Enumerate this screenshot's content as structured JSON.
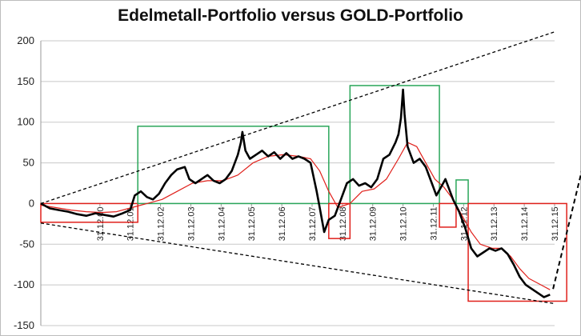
{
  "chart_data": {
    "type": "line",
    "title": "Edelmetall-Portfolio versus GOLD-Portfolio",
    "xlabel": "",
    "ylabel": "",
    "ylim": [
      -150,
      200
    ],
    "yticks": [
      -150,
      -100,
      -50,
      0,
      50,
      100,
      150,
      200
    ],
    "xticks": [
      "31.12.00",
      "31.12.01",
      "31.12.02",
      "31.12.03",
      "31.12.04",
      "31.12.05",
      "31.12.06",
      "31.12.07",
      "31.12.08",
      "31.12.09",
      "31.12.10",
      "31.12.11",
      "31.12.12",
      "31.12.13",
      "31.12.14",
      "31.12.15"
    ],
    "xlim_years": [
      1999.0,
      2015.95
    ],
    "grid": "horizontal",
    "legend": "none",
    "series": [
      {
        "color": "#000000",
        "x": [
          1999.0,
          1999.3,
          1999.6,
          1999.9,
          2000.2,
          2000.5,
          2000.8,
          2001.1,
          2001.4,
          2001.7,
          2001.95,
          2002.1,
          2002.3,
          2002.5,
          2002.7,
          2002.9,
          2003.1,
          2003.3,
          2003.5,
          2003.75,
          2003.9,
          2004.1,
          2004.3,
          2004.5,
          2004.7,
          2004.9,
          2005.1,
          2005.3,
          2005.5,
          2005.6,
          2005.65,
          2005.75,
          2005.9,
          2006.1,
          2006.3,
          2006.5,
          2006.7,
          2006.9,
          2007.1,
          2007.3,
          2007.5,
          2007.7,
          2007.9,
          2008.1,
          2008.2,
          2008.35,
          2008.5,
          2008.7,
          2008.9,
          2009.1,
          2009.3,
          2009.5,
          2009.7,
          2009.9,
          2010.1,
          2010.3,
          2010.5,
          2010.7,
          2010.8,
          2010.88,
          2010.95,
          2011.0,
          2011.1,
          2011.3,
          2011.5,
          2011.7,
          2011.9,
          2012.05,
          2012.2,
          2012.35,
          2012.5,
          2012.6,
          2012.8,
          2013.0,
          2013.2,
          2013.4,
          2013.6,
          2013.8,
          2014.0,
          2014.2,
          2014.4,
          2014.6,
          2014.8,
          2015.0,
          2015.2,
          2015.4,
          2015.6,
          2015.8
        ],
        "y": [
          0,
          -6,
          -8,
          -10,
          -13,
          -15,
          -12,
          -14,
          -16,
          -12,
          -8,
          10,
          15,
          8,
          5,
          12,
          25,
          35,
          42,
          45,
          30,
          25,
          30,
          35,
          28,
          25,
          30,
          40,
          60,
          75,
          88,
          65,
          55,
          60,
          65,
          58,
          63,
          55,
          62,
          55,
          58,
          55,
          50,
          15,
          -5,
          -35,
          -20,
          -15,
          5,
          25,
          30,
          22,
          25,
          20,
          30,
          55,
          60,
          75,
          85,
          105,
          140,
          110,
          70,
          50,
          55,
          45,
          25,
          10,
          20,
          30,
          15,
          5,
          -10,
          -30,
          -55,
          -65,
          -60,
          -55,
          -58,
          -55,
          -62,
          -75,
          -90,
          -100,
          -105,
          -110,
          -115,
          -112
        ]
      },
      {
        "color": "#e0201b",
        "x": [
          1999.0,
          1999.5,
          2000.0,
          2000.5,
          2001.0,
          2001.5,
          2002.0,
          2002.5,
          2003.0,
          2003.5,
          2004.0,
          2004.5,
          2005.0,
          2005.5,
          2006.0,
          2006.5,
          2007.0,
          2007.5,
          2007.9,
          2008.2,
          2008.5,
          2008.8,
          2009.2,
          2009.6,
          2010.0,
          2010.4,
          2010.8,
          2011.1,
          2011.4,
          2011.7,
          2012.0,
          2012.3,
          2012.6,
          2012.9,
          2013.2,
          2013.5,
          2013.9,
          2014.2,
          2014.5,
          2014.8,
          2015.1,
          2015.5,
          2015.8
        ],
        "y": [
          -2,
          -5,
          -8,
          -10,
          -11,
          -10,
          -5,
          0,
          5,
          15,
          25,
          28,
          28,
          35,
          50,
          58,
          60,
          58,
          55,
          40,
          15,
          -5,
          0,
          15,
          18,
          30,
          55,
          75,
          70,
          50,
          30,
          20,
          5,
          -15,
          -35,
          -50,
          -55,
          -55,
          -65,
          -80,
          -92,
          -100,
          -106
        ]
      }
    ],
    "annotations": {
      "trend_lines": [
        {
          "style": "dashed",
          "from": [
            1999.0,
            0
          ],
          "to": [
            2015.95,
            211
          ]
        },
        {
          "style": "dashed",
          "from": [
            1999.0,
            -24
          ],
          "to": [
            2015.95,
            -123
          ]
        },
        {
          "style": "dashed-arrow",
          "from": [
            2015.9,
            -105
          ],
          "to": [
            2017.4,
            125
          ]
        }
      ],
      "boxes": [
        {
          "color": "#e0201b",
          "x": [
            1999.0,
            2002.2
          ],
          "y": [
            -23,
            0
          ]
        },
        {
          "color": "#2aa65a",
          "x": [
            2002.2,
            2008.5
          ],
          "y": [
            0,
            95
          ]
        },
        {
          "color": "#e0201b",
          "x": [
            2008.5,
            2009.2
          ],
          "y": [
            -43,
            0
          ]
        },
        {
          "color": "#2aa65a",
          "x": [
            2009.2,
            2012.15
          ],
          "y": [
            0,
            145
          ]
        },
        {
          "color": "#e0201b",
          "x": [
            2012.15,
            2012.7
          ],
          "y": [
            -29,
            0
          ]
        },
        {
          "color": "#2aa65a",
          "x": [
            2012.7,
            2013.1
          ],
          "y": [
            0,
            29
          ]
        },
        {
          "color": "#e0201b",
          "x": [
            2013.1,
            2016.35
          ],
          "y": [
            -120,
            0
          ]
        }
      ]
    }
  }
}
